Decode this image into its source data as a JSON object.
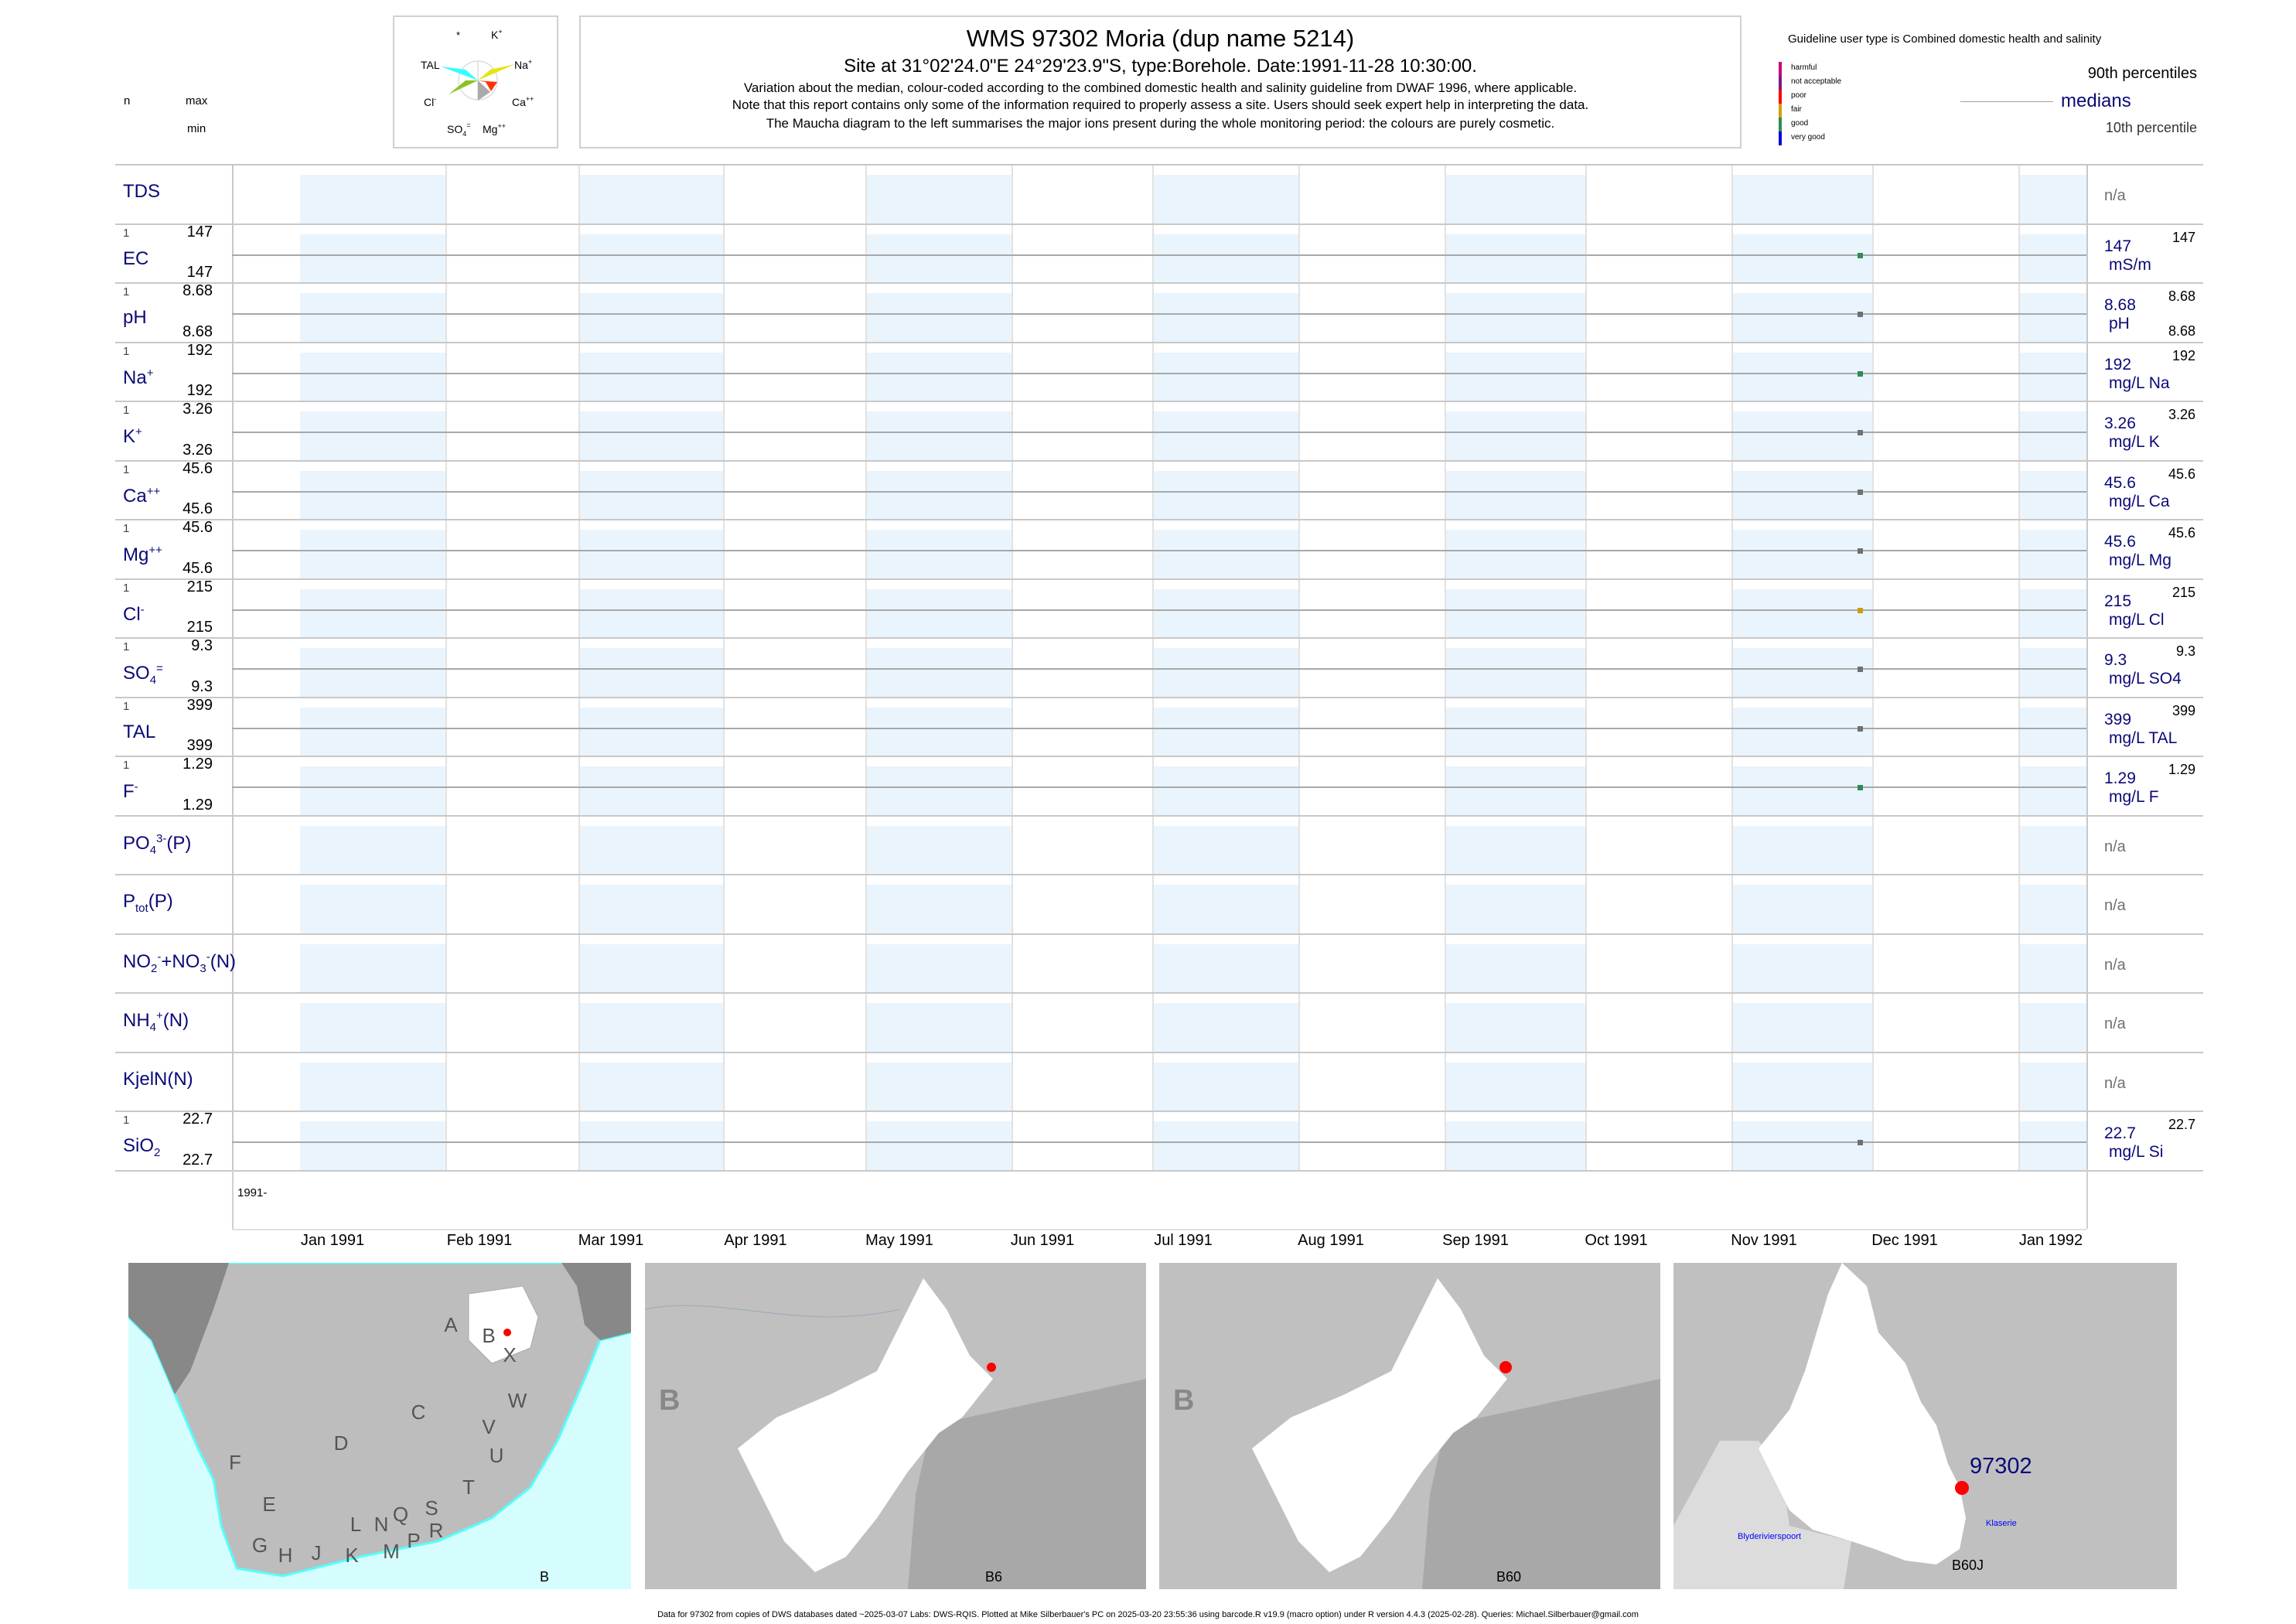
{
  "header": {
    "n_label": "n",
    "max_label": "max",
    "min_label": "min",
    "title": "WMS 97302  Moria (dup name 5214)",
    "subtitle": "Site at 31°02'24.0\"E 24°29'23.9\"S, type:Borehole. Date:1991-11-28 10:30:00.",
    "notes": [
      "Variation about the median,  colour-coded according to the combined domestic health and salinity guideline from DWAF 1996, where applicable.",
      "Note that this report contains only some of the information required to properly assess a site. Users should seek expert help in interpreting the data.",
      "The Maucha diagram to the left summarises the major ions present during the whole monitoring period: the colours are purely cosmetic."
    ]
  },
  "maucha": {
    "labels": {
      "star": "*",
      "k": "K",
      "k_sup": "+",
      "tal": "TAL",
      "na": "Na",
      "na_sup": "+",
      "cl": "Cl",
      "cl_sup": "-",
      "ca": "Ca",
      "ca_sup": "++",
      "so4": "SO",
      "so4_sub": "4",
      "so4_sup": "=",
      "mg": "Mg",
      "mg_sup": "++"
    },
    "colors": {
      "tal": "#33ffff",
      "na": "#e5e510",
      "cl": "#8bc322",
      "ca": "#ff3300",
      "mg": "#aaaaaa"
    }
  },
  "legend": {
    "guideline": "Guideline user type is Combined domestic health and salinity",
    "classes": [
      {
        "label": "harmful",
        "color": "#c8007a"
      },
      {
        "label": "not acceptable",
        "color": "#7a1a8a"
      },
      {
        "label": "poor",
        "color": "#ff0000"
      },
      {
        "label": "fair",
        "color": "#d0a000"
      },
      {
        "label": "good",
        "color": "#2e8b57"
      },
      {
        "label": "very good",
        "color": "#0000dd"
      }
    ],
    "p90": "90th percentiles",
    "medians": "medians",
    "p10": "10th percentile"
  },
  "chart_data": {
    "type": "scatter",
    "title": "WMS 97302  Moria (dup name 5214)",
    "x_axis": {
      "range": [
        "1990-12-15",
        "1992-01-15"
      ],
      "ticks": [
        "Jan 1991",
        "Feb 1991",
        "Mar 1991",
        "Apr 1991",
        "May 1991",
        "Jun 1991",
        "Jul 1991",
        "Aug 1991",
        "Sep 1991",
        "Oct 1991",
        "Nov 1991",
        "Dec 1991",
        "Jan 1992"
      ],
      "year_label": "1991-"
    },
    "sample_date": "1991-11-28",
    "sample_fraction": 0.878,
    "rows": [
      {
        "label": "TDS",
        "na": "n/a"
      },
      {
        "label": "EC",
        "n": "1",
        "max": "147",
        "min": "147",
        "median": "147",
        "unit": "mS/m",
        "p90": "147",
        "value": 147,
        "color": "#2e8b57"
      },
      {
        "label": "pH",
        "n": "1",
        "max": "8.68",
        "min": "8.68",
        "median": "8.68",
        "unit": "pH",
        "p90": "8.68",
        "p10": "8.68",
        "value": 8.68,
        "color": "#707070"
      },
      {
        "label": "Na",
        "sup": "+",
        "n": "1",
        "max": "192",
        "min": "192",
        "median": "192",
        "unit": "mg/L Na",
        "p90": "192",
        "value": 192,
        "color": "#2e8b57"
      },
      {
        "label": "K",
        "sup": "+",
        "n": "1",
        "max": "3.26",
        "min": "3.26",
        "median": "3.26",
        "unit": "mg/L K",
        "p90": "3.26",
        "value": 3.26,
        "color": "#707070"
      },
      {
        "label": "Ca",
        "sup": "++",
        "n": "1",
        "max": "45.6",
        "min": "45.6",
        "median": "45.6",
        "unit": "mg/L Ca",
        "p90": "45.6",
        "value": 45.6,
        "color": "#707070"
      },
      {
        "label": "Mg",
        "sup": "++",
        "n": "1",
        "max": "45.6",
        "min": "45.6",
        "median": "45.6",
        "unit": "mg/L Mg",
        "p90": "45.6",
        "value": 45.6,
        "color": "#707070"
      },
      {
        "label": "Cl",
        "sup": "-",
        "n": "1",
        "max": "215",
        "min": "215",
        "median": "215",
        "unit": "mg/L Cl",
        "p90": "215",
        "value": 215,
        "color": "#c8a000"
      },
      {
        "label": "SO",
        "sub": "4",
        "sup": "=",
        "n": "1",
        "max": "9.3",
        "min": "9.3",
        "median": "9.3",
        "unit": "mg/L SO4",
        "p90": "9.3",
        "value": 9.3,
        "color": "#707070"
      },
      {
        "label": "TAL",
        "n": "1",
        "max": "399",
        "min": "399",
        "median": "399",
        "unit": "mg/L TAL",
        "p90": "399",
        "value": 399,
        "color": "#707070"
      },
      {
        "label": "F",
        "sup": "-",
        "n": "1",
        "max": "1.29",
        "min": "1.29",
        "median": "1.29",
        "unit": "mg/L F",
        "p90": "1.29",
        "value": 1.29,
        "color": "#2e8b57"
      },
      {
        "label": "PO",
        "sub": "4",
        "sup": "3-",
        "tail": "(P)",
        "na": "n/a"
      },
      {
        "label": "P",
        "sub": "tot",
        "tail": "(P)",
        "na": "n/a"
      },
      {
        "label": "NO",
        "sub": "2",
        "sup": "-",
        "tail": "+NO",
        "sub2": "3",
        "sup2": "-",
        "tail2": "(N)",
        "na": "n/a"
      },
      {
        "label": "NH",
        "sub": "4",
        "sup": "+",
        "tail": "(N)",
        "na": "n/a"
      },
      {
        "label": "KjelN(N)",
        "na": "n/a"
      },
      {
        "label": "SiO",
        "sub": "2",
        "n": "1",
        "max": "22.7",
        "min": "22.7",
        "median": "22.7",
        "unit": "mg/L Si",
        "p90": "22.7",
        "value": 22.7,
        "color": "#707070"
      }
    ]
  },
  "maps": [
    {
      "caption": "B",
      "regions": [
        "A",
        "B",
        "X",
        "C",
        "W",
        "V",
        "U",
        "D",
        "T",
        "F",
        "E",
        "S",
        "R",
        "Q",
        "N",
        "L",
        "K",
        "M",
        "P",
        "J",
        "H",
        "G"
      ]
    },
    {
      "caption": "B6",
      "region": "B"
    },
    {
      "caption": "B60",
      "region": "B"
    },
    {
      "caption": "B60J",
      "site": "97302",
      "places": [
        "Blyderivierspoort",
        "Klaserie"
      ]
    }
  ],
  "footer": "Data for 97302 from copies of DWS databases dated ~2025-03-07 Labs: DWS-RQIS. Plotted at Mike Silberbauer's PC on 2025-03-20 23:55:36 using barcode.R v19.9 (macro option) under R version 4.4.3 (2025-02-28). Queries: Michael.Silberbauer@gmail.com"
}
